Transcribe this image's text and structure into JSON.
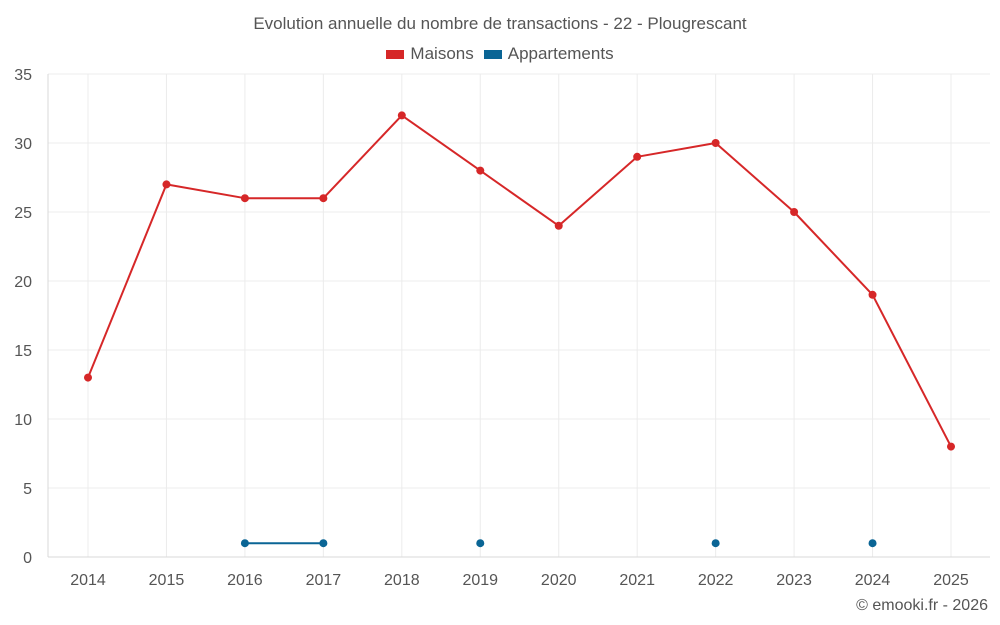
{
  "chart_data": {
    "type": "line",
    "title": "Evolution annuelle du nombre de transactions - 22 - Plougrescant",
    "categories": [
      "2014",
      "2015",
      "2016",
      "2017",
      "2018",
      "2019",
      "2020",
      "2021",
      "2022",
      "2023",
      "2024",
      "2025"
    ],
    "yticks": [
      0,
      5,
      10,
      15,
      20,
      25,
      30,
      35
    ],
    "ylim": [
      0,
      35
    ],
    "grid": true,
    "legend_position": "top-center",
    "series": [
      {
        "name": "Maisons",
        "color": "#d62728",
        "values": [
          13,
          27,
          26,
          26,
          32,
          28,
          24,
          29,
          30,
          25,
          19,
          8
        ]
      },
      {
        "name": "Appartements",
        "color": "#0a6595",
        "values": [
          null,
          null,
          1,
          1,
          null,
          1,
          null,
          null,
          1,
          null,
          1,
          null
        ]
      }
    ]
  },
  "footer": {
    "credit": "© emooki.fr - 2026"
  }
}
